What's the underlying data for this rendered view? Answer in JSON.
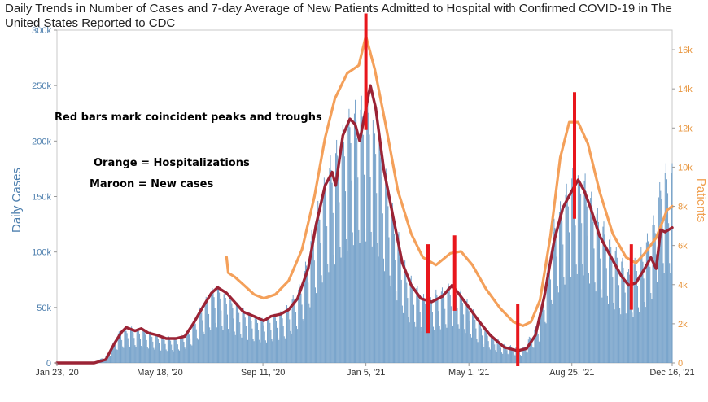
{
  "chart_data": {
    "type": "bar",
    "title": "Daily Trends in Number of Cases and 7-day Average of New Patients Admitted to Hospital with Confirmed COVID-19 in The United States Reported to CDC",
    "ylabel_left": "Daily Cases",
    "ylabel_right": "Patients",
    "ylim_left": [
      0,
      300000
    ],
    "ylim_right": [
      0,
      17000
    ],
    "yticks_left": [
      "0",
      "50k",
      "100k",
      "150k",
      "200k",
      "250k",
      "300k"
    ],
    "yticks_left_values": [
      0,
      50000,
      100000,
      150000,
      200000,
      250000,
      300000
    ],
    "yticks_right": [
      "0",
      "2k",
      "4k",
      "6k",
      "8k",
      "10k",
      "12k",
      "14k",
      "16k"
    ],
    "yticks_right_values": [
      0,
      2000,
      4000,
      6000,
      8000,
      10000,
      12000,
      14000,
      16000
    ],
    "xticks": [
      "Jan 23, '20",
      "May 18, '20",
      "Sep 11, '20",
      "Jan 5, '21",
      "May 1, '21",
      "Aug 25, '21",
      "Dec 16, '21"
    ],
    "xticks_dates": [
      "2020-01-23",
      "2020-05-18",
      "2020-09-11",
      "2021-01-05",
      "2021-05-01",
      "2021-08-25",
      "2021-12-16"
    ],
    "xlim_dates": [
      "2020-01-23",
      "2021-12-16"
    ],
    "colors": {
      "bars": "#5b8fbf",
      "cases_avg": "#9b2335",
      "hospitalizations": "#f4a05a",
      "marker": "#e8161c"
    },
    "cases_7day_avg": [
      [
        "2020-01-23",
        0
      ],
      [
        "2020-03-05",
        0
      ],
      [
        "2020-03-18",
        3000
      ],
      [
        "2020-03-28",
        18000
      ],
      [
        "2020-04-05",
        28000
      ],
      [
        "2020-04-10",
        32000
      ],
      [
        "2020-04-20",
        29000
      ],
      [
        "2020-04-27",
        31000
      ],
      [
        "2020-05-05",
        27000
      ],
      [
        "2020-05-15",
        25000
      ],
      [
        "2020-05-25",
        22000
      ],
      [
        "2020-06-05",
        22000
      ],
      [
        "2020-06-15",
        24000
      ],
      [
        "2020-06-25",
        36000
      ],
      [
        "2020-07-05",
        50000
      ],
      [
        "2020-07-15",
        63000
      ],
      [
        "2020-07-22",
        68000
      ],
      [
        "2020-08-01",
        63000
      ],
      [
        "2020-08-10",
        55000
      ],
      [
        "2020-08-20",
        46000
      ],
      [
        "2020-09-01",
        42000
      ],
      [
        "2020-09-12",
        38000
      ],
      [
        "2020-09-20",
        42000
      ],
      [
        "2020-10-01",
        44000
      ],
      [
        "2020-10-10",
        48000
      ],
      [
        "2020-10-20",
        58000
      ],
      [
        "2020-11-01",
        85000
      ],
      [
        "2020-11-10",
        125000
      ],
      [
        "2020-11-20",
        160000
      ],
      [
        "2020-11-28",
        172000
      ],
      [
        "2020-12-02",
        160000
      ],
      [
        "2020-12-10",
        205000
      ],
      [
        "2020-12-18",
        220000
      ],
      [
        "2020-12-24",
        215000
      ],
      [
        "2020-12-29",
        200000
      ],
      [
        "2021-01-04",
        225000
      ],
      [
        "2021-01-10",
        250000
      ],
      [
        "2021-01-16",
        230000
      ],
      [
        "2021-01-25",
        175000
      ],
      [
        "2021-02-05",
        130000
      ],
      [
        "2021-02-15",
        90000
      ],
      [
        "2021-02-25",
        70000
      ],
      [
        "2021-03-08",
        58000
      ],
      [
        "2021-03-20",
        55000
      ],
      [
        "2021-04-01",
        60000
      ],
      [
        "2021-04-12",
        70000
      ],
      [
        "2021-04-20",
        62000
      ],
      [
        "2021-05-01",
        50000
      ],
      [
        "2021-05-12",
        38000
      ],
      [
        "2021-05-25",
        25000
      ],
      [
        "2021-06-10",
        14000
      ],
      [
        "2021-06-25",
        11000
      ],
      [
        "2021-07-05",
        13000
      ],
      [
        "2021-07-15",
        25000
      ],
      [
        "2021-07-25",
        60000
      ],
      [
        "2021-08-05",
        110000
      ],
      [
        "2021-08-15",
        140000
      ],
      [
        "2021-08-25",
        155000
      ],
      [
        "2021-09-01",
        165000
      ],
      [
        "2021-09-08",
        155000
      ],
      [
        "2021-09-15",
        140000
      ],
      [
        "2021-09-25",
        115000
      ],
      [
        "2021-10-05",
        100000
      ],
      [
        "2021-10-20",
        78000
      ],
      [
        "2021-10-28",
        70000
      ],
      [
        "2021-11-05",
        72000
      ],
      [
        "2021-11-15",
        85000
      ],
      [
        "2021-11-22",
        95000
      ],
      [
        "2021-11-28",
        85000
      ],
      [
        "2021-12-03",
        120000
      ],
      [
        "2021-12-08",
        118000
      ],
      [
        "2021-12-16",
        122000
      ]
    ],
    "hospitalizations_7day_avg": [
      [
        "2020-08-01",
        5400
      ],
      [
        "2020-08-03",
        4600
      ],
      [
        "2020-08-10",
        4400
      ],
      [
        "2020-08-20",
        4000
      ],
      [
        "2020-09-01",
        3500
      ],
      [
        "2020-09-12",
        3300
      ],
      [
        "2020-09-25",
        3500
      ],
      [
        "2020-10-10",
        4200
      ],
      [
        "2020-10-25",
        5800
      ],
      [
        "2020-11-08",
        8500
      ],
      [
        "2020-11-20",
        11500
      ],
      [
        "2020-12-01",
        13500
      ],
      [
        "2020-12-15",
        14800
      ],
      [
        "2020-12-28",
        15200
      ],
      [
        "2021-01-05",
        16700
      ],
      [
        "2021-01-15",
        15000
      ],
      [
        "2021-01-28",
        12000
      ],
      [
        "2021-02-10",
        8800
      ],
      [
        "2021-02-25",
        6600
      ],
      [
        "2021-03-10",
        5400
      ],
      [
        "2021-03-25",
        5000
      ],
      [
        "2021-04-10",
        5600
      ],
      [
        "2021-04-22",
        5700
      ],
      [
        "2021-05-05",
        5000
      ],
      [
        "2021-05-20",
        3800
      ],
      [
        "2021-06-05",
        2800
      ],
      [
        "2021-06-20",
        2100
      ],
      [
        "2021-07-01",
        1900
      ],
      [
        "2021-07-10",
        2100
      ],
      [
        "2021-07-20",
        3200
      ],
      [
        "2021-08-01",
        6500
      ],
      [
        "2021-08-12",
        10500
      ],
      [
        "2021-08-22",
        12300
      ],
      [
        "2021-09-01",
        12300
      ],
      [
        "2021-09-12",
        11200
      ],
      [
        "2021-09-25",
        8800
      ],
      [
        "2021-10-10",
        6600
      ],
      [
        "2021-10-25",
        5400
      ],
      [
        "2021-11-05",
        5100
      ],
      [
        "2021-11-15",
        5600
      ],
      [
        "2021-11-28",
        6400
      ],
      [
        "2021-12-05",
        7200
      ],
      [
        "2021-12-10",
        7800
      ],
      [
        "2021-12-16",
        8000
      ]
    ],
    "daily_cases_envelope": [
      [
        "2020-01-23",
        0
      ],
      [
        "2020-03-05",
        0
      ],
      [
        "2020-03-20",
        8000
      ],
      [
        "2020-04-01",
        28000
      ],
      [
        "2020-04-15",
        33000
      ],
      [
        "2020-05-01",
        30000
      ],
      [
        "2020-05-18",
        25000
      ],
      [
        "2020-06-05",
        23000
      ],
      [
        "2020-06-20",
        30000
      ],
      [
        "2020-07-05",
        55000
      ],
      [
        "2020-07-20",
        72000
      ],
      [
        "2020-08-05",
        60000
      ],
      [
        "2020-08-25",
        46000
      ],
      [
        "2020-09-12",
        40000
      ],
      [
        "2020-10-05",
        48000
      ],
      [
        "2020-10-25",
        75000
      ],
      [
        "2020-11-10",
        140000
      ],
      [
        "2020-11-25",
        185000
      ],
      [
        "2020-12-10",
        215000
      ],
      [
        "2020-12-20",
        235000
      ],
      [
        "2021-01-08",
        245000
      ],
      [
        "2021-01-20",
        210000
      ],
      [
        "2021-02-05",
        140000
      ],
      [
        "2021-02-20",
        85000
      ],
      [
        "2021-03-10",
        62000
      ],
      [
        "2021-04-01",
        68000
      ],
      [
        "2021-04-15",
        75000
      ],
      [
        "2021-05-01",
        55000
      ],
      [
        "2021-05-20",
        30000
      ],
      [
        "2021-06-10",
        17000
      ],
      [
        "2021-07-01",
        14000
      ],
      [
        "2021-07-20",
        40000
      ],
      [
        "2021-08-05",
        130000
      ],
      [
        "2021-08-25",
        175000
      ],
      [
        "2021-09-05",
        180000
      ],
      [
        "2021-09-20",
        145000
      ],
      [
        "2021-10-10",
        110000
      ],
      [
        "2021-10-28",
        85000
      ],
      [
        "2021-11-15",
        110000
      ],
      [
        "2021-11-28",
        140000
      ],
      [
        "2021-12-05",
        180000
      ],
      [
        "2021-12-16",
        180000
      ]
    ],
    "markers": [
      {
        "date": "2021-01-05",
        "low": 210000,
        "high": 315000
      },
      {
        "date": "2021-03-16",
        "low": 27000,
        "high": 107000
      },
      {
        "date": "2021-04-15",
        "low": 47000,
        "high": 115000
      },
      {
        "date": "2021-06-25",
        "low": -5000,
        "high": 53000
      },
      {
        "date": "2021-08-28",
        "low": 130000,
        "high": 244000
      },
      {
        "date": "2021-10-31",
        "low": 48000,
        "high": 107000
      }
    ]
  },
  "annotations": {
    "note_1": "Red bars mark coincident peaks and troughs",
    "note_2": "Orange = Hospitalizations",
    "note_3": "Maroon = New cases"
  }
}
